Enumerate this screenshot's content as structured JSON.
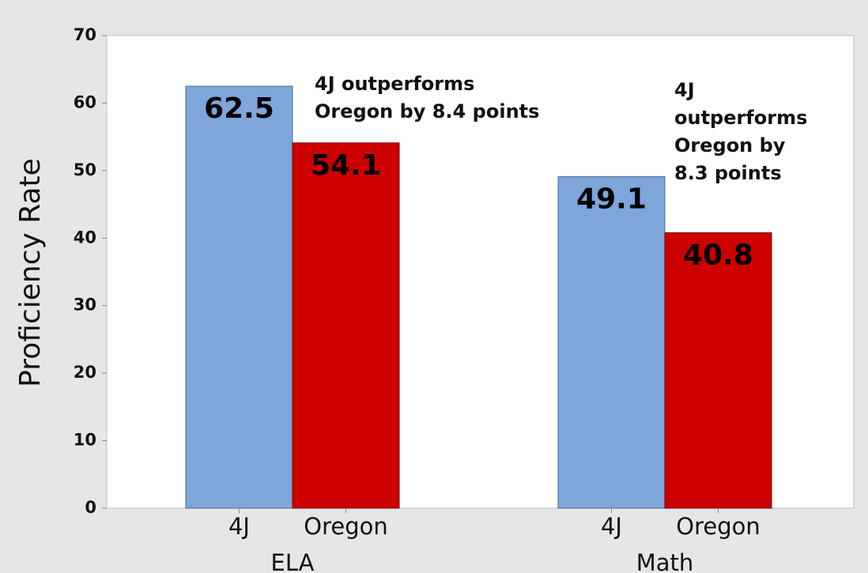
{
  "chart_data": {
    "type": "bar",
    "y_label": "Proficiency Rate",
    "categories": [
      "ELA",
      "Math"
    ],
    "series": [
      {
        "name": "4J",
        "color": "#7ea6da",
        "values": [
          62.5,
          49.1
        ]
      },
      {
        "name": "Oregon",
        "color": "#cc0000",
        "values": [
          54.1,
          40.8
        ]
      }
    ],
    "ylim": [
      0,
      70
    ],
    "yticks": [
      0,
      10,
      20,
      30,
      40,
      50,
      60,
      70
    ],
    "grid": false,
    "annotations": [
      {
        "lines": [
          "4J outperforms",
          "Oregon by 8.4 points"
        ]
      },
      {
        "lines": [
          "4J",
          "outperforms",
          "Oregon by",
          "8.3 points"
        ]
      }
    ]
  }
}
